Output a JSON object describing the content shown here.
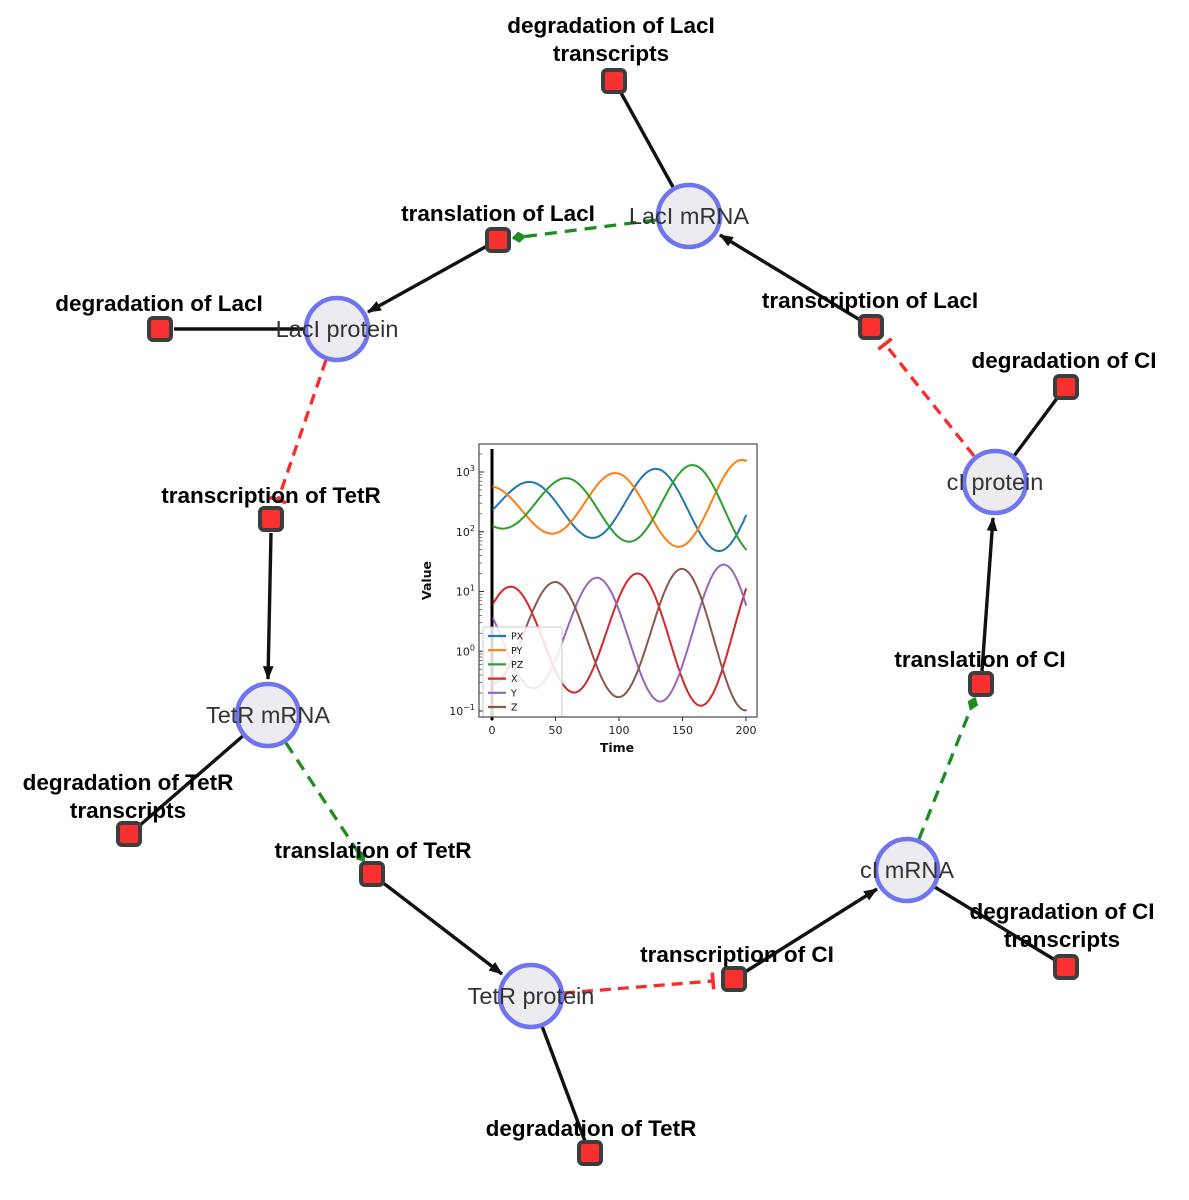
{
  "diagram": {
    "species": [
      {
        "id": "laci-mrna",
        "label": "LacI mRNA"
      },
      {
        "id": "laci-protein",
        "label": "LacI protein"
      },
      {
        "id": "tetr-mrna",
        "label": "TetR mRNA"
      },
      {
        "id": "tetr-protein",
        "label": "TetR protein"
      },
      {
        "id": "ci-mrna",
        "label": "cI mRNA"
      },
      {
        "id": "ci-protein",
        "label": "cI protein"
      }
    ],
    "reactions": [
      {
        "id": "degradation-laci-transcripts",
        "lines": [
          "degradation of LacI",
          "transcripts"
        ]
      },
      {
        "id": "translation-laci",
        "lines": [
          "translation of LacI"
        ]
      },
      {
        "id": "degradation-laci",
        "lines": [
          "degradation of LacI"
        ]
      },
      {
        "id": "transcription-laci",
        "lines": [
          "transcription of LacI"
        ]
      },
      {
        "id": "degradation-ci",
        "lines": [
          "degradation of CI"
        ]
      },
      {
        "id": "transcription-tetr",
        "lines": [
          "transcription of TetR"
        ]
      },
      {
        "id": "degradation-tetr-transcripts",
        "lines": [
          "degradation of TetR",
          "transcripts"
        ]
      },
      {
        "id": "translation-tetr",
        "lines": [
          "translation of TetR"
        ]
      },
      {
        "id": "degradation-tetr",
        "lines": [
          "degradation of TetR"
        ]
      },
      {
        "id": "transcription-ci",
        "lines": [
          "transcription of CI"
        ]
      },
      {
        "id": "degradation-ci-transcripts",
        "lines": [
          "degradation of CI",
          "transcripts"
        ]
      },
      {
        "id": "translation-ci",
        "lines": [
          "translation of CI"
        ]
      }
    ],
    "colors": {
      "species_fill": "#ececf0",
      "species_border": "#6f74ef",
      "reaction_fill": "#f93030",
      "reaction_border": "#3d3d3d",
      "edge_black": "#111111",
      "edge_activation_green": "#1e8c1e",
      "edge_inhibition_red": "#f82c2c"
    }
  },
  "chart_data": {
    "type": "line",
    "title": "",
    "xlabel": "Time",
    "ylabel": "Value",
    "yscale": "log",
    "xticks": [
      0,
      50,
      100,
      150,
      200
    ],
    "ytick_exponents": [
      3,
      2,
      1,
      0,
      -1
    ],
    "xlim": [
      -10,
      209
    ],
    "ylim_log10": [
      -1.1,
      3.47
    ],
    "grid": false,
    "legend_position": "lower left",
    "t0_marker": {
      "time": 0,
      "color": "#000000"
    },
    "x_samples": [
      0,
      20,
      40,
      60,
      80,
      100,
      120,
      140,
      160,
      180,
      200
    ],
    "series": [
      {
        "name": "PX",
        "color": "#1f77b4",
        "center_log10": 2.42,
        "amp0": 0.35,
        "amp_slope": 0.0022,
        "period": 100,
        "phase": 3,
        "values": [
          226,
          582,
          548,
          164,
          79,
          206,
          908,
          794,
          132,
          48,
          187
        ]
      },
      {
        "name": "PY",
        "color": "#ff7f0e",
        "center_log10": 2.42,
        "amp0": 0.35,
        "amp_slope": 0.0022,
        "period": 100,
        "phase": 71,
        "values": [
          574,
          278,
          103,
          130,
          503,
          938,
          288,
          64,
          94,
          660,
          1532
        ]
      },
      {
        "name": "PZ",
        "color": "#2ca02c",
        "center_log10": 2.42,
        "amp0": 0.35,
        "amp_slope": 0.0022,
        "period": 100,
        "phase": 32,
        "values": [
          127,
          141,
          428,
          783,
          306,
          80,
          100,
          546,
          1288,
          326,
          51
        ]
      },
      {
        "name": "X",
        "color": "#d62728",
        "center_log10": 0.25,
        "amp0": 0.8,
        "amp_slope": 0.0022,
        "period": 100,
        "phase": 89,
        "values": [
          5.8,
          10.8,
          1.6,
          0.22,
          0.53,
          7.9,
          17.3,
          1.5,
          0.14,
          0.41,
          11.0
        ]
      },
      {
        "name": "Y",
        "color": "#9467bd",
        "center_log10": 0.25,
        "amp0": 0.8,
        "amp_slope": 0.0022,
        "period": 100,
        "phase": 57,
        "values": [
          3.9,
          0.43,
          0.3,
          2.7,
          16.5,
          4.8,
          0.3,
          0.19,
          2.9,
          27.3,
          6.0
        ]
      },
      {
        "name": "Z",
        "color": "#8c564b",
        "center_log10": 0.25,
        "amp0": 0.8,
        "amp_slope": 0.0022,
        "period": 100,
        "phase": 24,
        "values": [
          0.28,
          1.1,
          10.0,
          9.3,
          0.78,
          0.17,
          0.97,
          15.3,
          13.7,
          0.65,
          0.1
        ]
      }
    ]
  }
}
